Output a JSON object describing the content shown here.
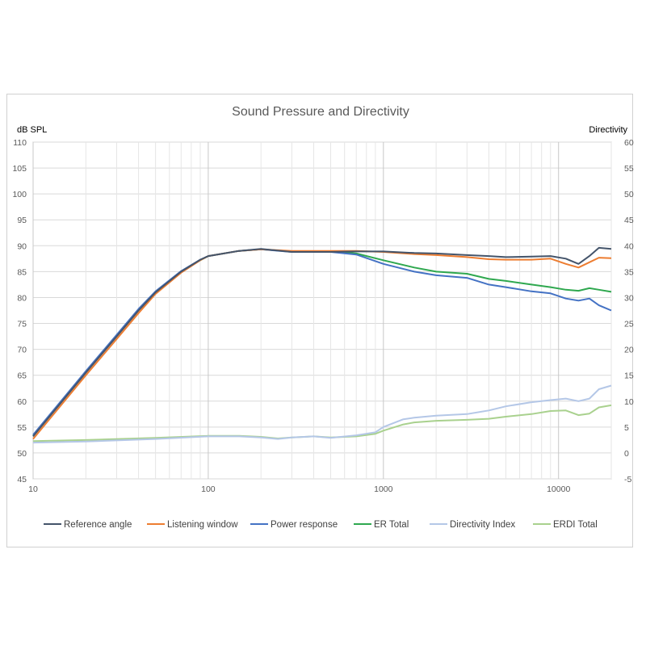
{
  "chart_data": {
    "type": "line",
    "title": "Sound Pressure and Directivity",
    "ylabel_left": "dB SPL",
    "ylabel_right": "Directivity",
    "xscale": "log",
    "xlim": [
      10,
      20000
    ],
    "ylim_left": [
      45,
      110
    ],
    "ylim_right": [
      -5,
      60
    ],
    "grid": true,
    "legend": "bottom",
    "x_ticks": [
      10,
      100,
      1000,
      10000
    ],
    "x_tick_labels": [
      "10",
      "100",
      "1000",
      "10000"
    ],
    "y_left_ticks": [
      45,
      50,
      55,
      60,
      65,
      70,
      75,
      80,
      85,
      90,
      95,
      100,
      105,
      110
    ],
    "y_left_tick_labels": [
      "45",
      "50",
      "55",
      "60",
      "65",
      "70",
      "75",
      "80",
      "85",
      "90",
      "95",
      "100",
      "105",
      "110"
    ],
    "y_right_ticks": [
      -5,
      0,
      5,
      10,
      15,
      20,
      25,
      30,
      35,
      40,
      45,
      50,
      55,
      60
    ],
    "y_right_tick_labels": [
      "-5",
      "0",
      "5",
      "10",
      "15",
      "20",
      "25",
      "30",
      "35",
      "40",
      "45",
      "50",
      "55",
      "60"
    ],
    "series": [
      {
        "name": "Reference angle",
        "axis": "left",
        "color": "#44546a",
        "points": [
          [
            10,
            53.2
          ],
          [
            20,
            65.5
          ],
          [
            30,
            72.5
          ],
          [
            40,
            77.5
          ],
          [
            50,
            81
          ],
          [
            70,
            85
          ],
          [
            90,
            87.3
          ],
          [
            100,
            88
          ],
          [
            150,
            89
          ],
          [
            200,
            89.4
          ],
          [
            300,
            88.8
          ],
          [
            500,
            88.8
          ],
          [
            700,
            88.9
          ],
          [
            1000,
            88.9
          ],
          [
            1500,
            88.6
          ],
          [
            2000,
            88.5
          ],
          [
            3000,
            88.2
          ],
          [
            4000,
            88
          ],
          [
            5000,
            87.8
          ],
          [
            7000,
            87.9
          ],
          [
            9000,
            88
          ],
          [
            11000,
            87.5
          ],
          [
            13000,
            86.5
          ],
          [
            15000,
            88
          ],
          [
            17000,
            89.6
          ],
          [
            20000,
            89.4
          ]
        ]
      },
      {
        "name": "Listening window",
        "axis": "left",
        "color": "#ed7d31",
        "points": [
          [
            10,
            52.7
          ],
          [
            20,
            65
          ],
          [
            30,
            72
          ],
          [
            40,
            77
          ],
          [
            50,
            80.7
          ],
          [
            70,
            84.8
          ],
          [
            90,
            87.2
          ],
          [
            100,
            88
          ],
          [
            150,
            89
          ],
          [
            200,
            89.3
          ],
          [
            300,
            89
          ],
          [
            500,
            89
          ],
          [
            700,
            89
          ],
          [
            1000,
            88.8
          ],
          [
            1500,
            88.4
          ],
          [
            2000,
            88.2
          ],
          [
            3000,
            87.8
          ],
          [
            4000,
            87.4
          ],
          [
            5000,
            87.3
          ],
          [
            7000,
            87.3
          ],
          [
            9000,
            87.5
          ],
          [
            11000,
            86.5
          ],
          [
            13000,
            85.8
          ],
          [
            15000,
            86.8
          ],
          [
            17000,
            87.7
          ],
          [
            20000,
            87.6
          ]
        ]
      },
      {
        "name": "Power response",
        "axis": "left",
        "color": "#4472c4",
        "points": [
          [
            10,
            53.5
          ],
          [
            20,
            65.8
          ],
          [
            30,
            72.8
          ],
          [
            40,
            77.8
          ],
          [
            50,
            81.2
          ],
          [
            70,
            85.1
          ],
          [
            90,
            87.3
          ],
          [
            100,
            88
          ],
          [
            150,
            89
          ],
          [
            200,
            89.3
          ],
          [
            300,
            88.8
          ],
          [
            500,
            88.8
          ],
          [
            700,
            88.3
          ],
          [
            1000,
            86.5
          ],
          [
            1500,
            85
          ],
          [
            2000,
            84.3
          ],
          [
            3000,
            83.8
          ],
          [
            4000,
            82.5
          ],
          [
            5000,
            82
          ],
          [
            7000,
            81.2
          ],
          [
            9000,
            80.8
          ],
          [
            11000,
            79.8
          ],
          [
            13000,
            79.4
          ],
          [
            15000,
            79.8
          ],
          [
            17000,
            78.5
          ],
          [
            20000,
            77.5
          ]
        ]
      },
      {
        "name": "ER Total",
        "axis": "left",
        "color": "#2fa84f",
        "points": [
          [
            10,
            53.3
          ],
          [
            20,
            65.6
          ],
          [
            30,
            72.6
          ],
          [
            40,
            77.6
          ],
          [
            50,
            81
          ],
          [
            70,
            85
          ],
          [
            90,
            87.2
          ],
          [
            100,
            88
          ],
          [
            150,
            89
          ],
          [
            200,
            89.3
          ],
          [
            300,
            88.9
          ],
          [
            500,
            88.9
          ],
          [
            700,
            88.5
          ],
          [
            1000,
            87.2
          ],
          [
            1500,
            85.8
          ],
          [
            2000,
            85
          ],
          [
            3000,
            84.6
          ],
          [
            4000,
            83.6
          ],
          [
            5000,
            83.2
          ],
          [
            7000,
            82.5
          ],
          [
            9000,
            82
          ],
          [
            11000,
            81.5
          ],
          [
            13000,
            81.3
          ],
          [
            15000,
            81.8
          ],
          [
            17000,
            81.5
          ],
          [
            20000,
            81.1
          ]
        ]
      },
      {
        "name": "Directivity Index",
        "axis": "right",
        "color": "#b4c7e7",
        "points": [
          [
            10,
            2
          ],
          [
            20,
            2.2
          ],
          [
            50,
            2.7
          ],
          [
            100,
            3.2
          ],
          [
            150,
            3.2
          ],
          [
            200,
            3
          ],
          [
            250,
            2.7
          ],
          [
            300,
            3
          ],
          [
            400,
            3.2
          ],
          [
            500,
            2.9
          ],
          [
            700,
            3.4
          ],
          [
            900,
            4
          ],
          [
            1000,
            5
          ],
          [
            1300,
            6.5
          ],
          [
            1500,
            6.8
          ],
          [
            2000,
            7.2
          ],
          [
            3000,
            7.5
          ],
          [
            4000,
            8.2
          ],
          [
            5000,
            9
          ],
          [
            7000,
            9.8
          ],
          [
            9000,
            10.2
          ],
          [
            11000,
            10.5
          ],
          [
            13000,
            10
          ],
          [
            15000,
            10.5
          ],
          [
            17000,
            12.3
          ],
          [
            20000,
            13
          ]
        ]
      },
      {
        "name": "ERDI Total",
        "axis": "right",
        "color": "#a9d18e",
        "points": [
          [
            10,
            2.3
          ],
          [
            20,
            2.5
          ],
          [
            50,
            2.9
          ],
          [
            100,
            3.3
          ],
          [
            150,
            3.3
          ],
          [
            200,
            3.1
          ],
          [
            250,
            2.8
          ],
          [
            300,
            3
          ],
          [
            400,
            3.2
          ],
          [
            500,
            3
          ],
          [
            700,
            3.2
          ],
          [
            900,
            3.7
          ],
          [
            1000,
            4.3
          ],
          [
            1300,
            5.5
          ],
          [
            1500,
            5.9
          ],
          [
            2000,
            6.2
          ],
          [
            3000,
            6.4
          ],
          [
            4000,
            6.6
          ],
          [
            5000,
            7
          ],
          [
            7000,
            7.5
          ],
          [
            9000,
            8.1
          ],
          [
            11000,
            8.2
          ],
          [
            13000,
            7.3
          ],
          [
            15000,
            7.6
          ],
          [
            17000,
            8.8
          ],
          [
            20000,
            9.2
          ]
        ]
      }
    ]
  }
}
